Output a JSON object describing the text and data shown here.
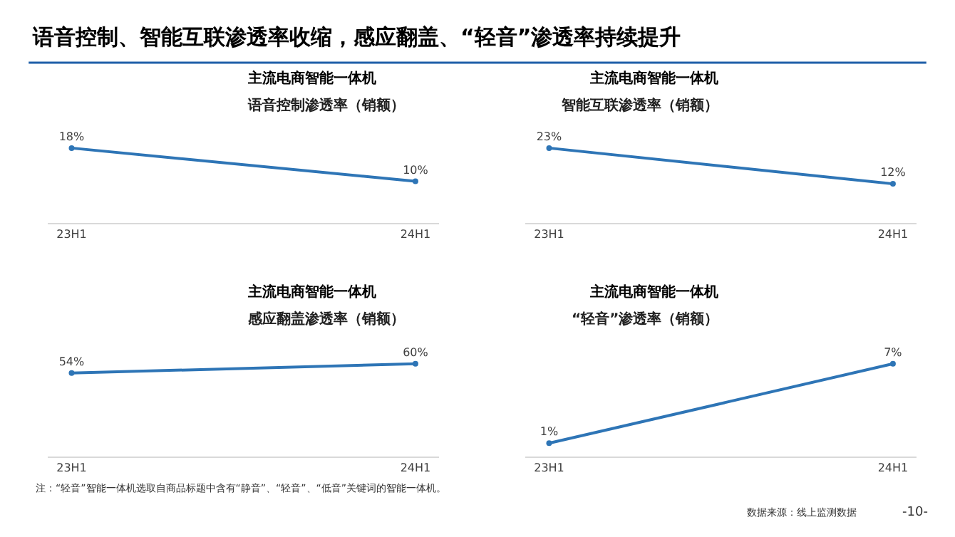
{
  "chart_data": [
    {
      "type": "other",
      "title": "语音控制、智能互联渗透率收缩，感应翻盖、“轻音”渗透率持续提升",
      "annotations": [
        "注：“轻音”智能一体机选取自商品标题中含有“静音”、“轻音”、“低音”关键词的智能一体机。",
        "数据来源：线上监测数据",
        "-10-"
      ]
    },
    {
      "type": "line",
      "title": "主流电商智能一体机",
      "subtitle": "语音控制渗透率（销额）",
      "categories": [
        "23H1",
        "24H1"
      ],
      "series": [
        {
          "color": "#2e75b6",
          "values": [
            18,
            10
          ],
          "value_labels": [
            "18%",
            "10%"
          ]
        }
      ],
      "marker": "circle",
      "tick_labels": "x"
    },
    {
      "type": "line",
      "title": "主流电商智能一体机",
      "subtitle": "智能互联渗透率（销额）",
      "categories": [
        "23H1",
        "24H1"
      ],
      "series": [
        {
          "color": "#2e75b6",
          "values": [
            23,
            12
          ],
          "value_labels": [
            "23%",
            "12%"
          ]
        }
      ],
      "marker": "circle",
      "tick_labels": "x"
    },
    {
      "type": "line",
      "title": "主流电商智能一体机",
      "subtitle": "感应翻盖渗透率（销额）",
      "categories": [
        "23H1",
        "24H1"
      ],
      "series": [
        {
          "color": "#2e75b6",
          "values": [
            54,
            60
          ],
          "value_labels": [
            "54%",
            "60%"
          ]
        }
      ],
      "marker": "circle",
      "tick_labels": "x"
    },
    {
      "type": "line",
      "title": "主流电商智能一体机",
      "subtitle": "“轻音”渗透率（销额）",
      "categories": [
        "23H1",
        "24H1"
      ],
      "series": [
        {
          "color": "#2e75b6",
          "values": [
            1,
            7
          ],
          "value_labels": [
            "1%",
            "7%"
          ]
        }
      ],
      "marker": "circle",
      "tick_labels": "x"
    }
  ]
}
